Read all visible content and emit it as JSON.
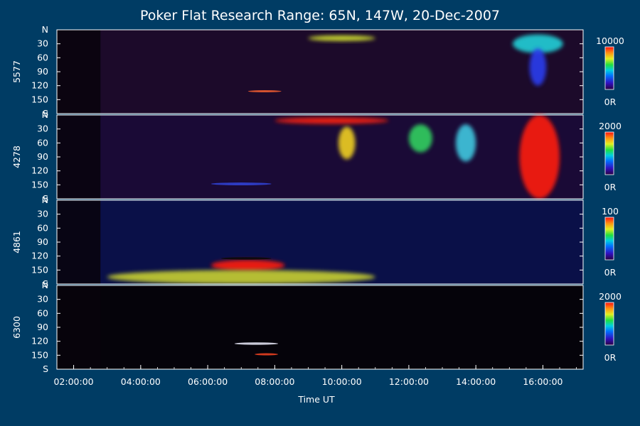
{
  "chart_data": {
    "type": "heatmap",
    "title": "Poker Flat Research Range: 65N, 147W, 20-Dec-2007",
    "xlabel": "Time UT",
    "x_ticks": [
      "02:00:00",
      "04:00:00",
      "06:00:00",
      "08:00:00",
      "10:00:00",
      "12:00:00",
      "14:00:00",
      "16:00:00"
    ],
    "xlim_hours": [
      1.5,
      17.2
    ],
    "y_ticks": [
      "N",
      "30",
      "60",
      "90",
      "120",
      "150",
      "S"
    ],
    "ylim_deg": [
      0,
      180
    ],
    "panels": [
      {
        "wavelength": "5577",
        "colorbar_max": "10000",
        "colorbar_min": "0R",
        "background": "#1c0a2a",
        "features": [
          {
            "name": "auroral-arcs",
            "t_start": 9.0,
            "t_end": 11.0,
            "angle": 18,
            "thickness": 12,
            "color": "#d8e830"
          },
          {
            "name": "early-arc",
            "t_start": 7.2,
            "t_end": 8.2,
            "angle": 132,
            "thickness": 4,
            "color": "#e85a30"
          },
          {
            "name": "morning-surge",
            "t_start": 15.1,
            "t_end": 16.6,
            "angle": 30,
            "thickness": 40,
            "color": "#22d0d8"
          },
          {
            "name": "morning-core",
            "t_start": 15.6,
            "t_end": 16.1,
            "angle": 80,
            "thickness": 80,
            "color": "#2a3cf0"
          }
        ]
      },
      {
        "wavelength": "4278",
        "colorbar_max": "2000",
        "colorbar_min": "0R",
        "background": "#1a0a36",
        "features": [
          {
            "name": "evening-band",
            "t_start": 8.0,
            "t_end": 11.4,
            "angle": 12,
            "thickness": 14,
            "color": "#ff2010"
          },
          {
            "name": "pulse-1",
            "t_start": 9.9,
            "t_end": 10.4,
            "angle": 60,
            "thickness": 70,
            "color": "#f0d020"
          },
          {
            "name": "pulse-2",
            "t_start": 12.0,
            "t_end": 12.7,
            "angle": 50,
            "thickness": 60,
            "color": "#30d060"
          },
          {
            "name": "pulse-3",
            "t_start": 13.4,
            "t_end": 14.0,
            "angle": 60,
            "thickness": 80,
            "color": "#40c8e0"
          },
          {
            "name": "morning-red",
            "t_start": 15.3,
            "t_end": 16.5,
            "angle": 90,
            "thickness": 180,
            "color": "#ff1a08"
          },
          {
            "name": "dim-blue",
            "t_start": 6.1,
            "t_end": 7.9,
            "angle": 148,
            "thickness": 6,
            "color": "#3040d0"
          }
        ]
      },
      {
        "wavelength": "4861",
        "colorbar_max": "100",
        "colorbar_min": "0R",
        "background": "#0a1048",
        "features": [
          {
            "name": "proton-blob",
            "t_start": 6.1,
            "t_end": 8.3,
            "angle": 140,
            "thickness": 24,
            "color": "#ff1a08"
          },
          {
            "name": "blob-rim",
            "t_start": 6.4,
            "t_end": 7.9,
            "angle": 125,
            "thickness": 5,
            "color": "#0a0a0a"
          },
          {
            "name": "lower-glow",
            "t_start": 3.0,
            "t_end": 11.0,
            "angle": 165,
            "thickness": 30,
            "color": "#c8d030"
          }
        ]
      },
      {
        "wavelength": "6300",
        "colorbar_max": "2000",
        "colorbar_min": "0R",
        "background": "#05030a",
        "features": [
          {
            "name": "red-line-arc",
            "t_start": 6.8,
            "t_end": 8.1,
            "angle": 125,
            "thickness": 5,
            "color": "#e0e0f0"
          },
          {
            "name": "red-line-spot",
            "t_start": 7.4,
            "t_end": 8.1,
            "angle": 148,
            "thickness": 3,
            "color": "#e84020"
          }
        ]
      }
    ]
  }
}
